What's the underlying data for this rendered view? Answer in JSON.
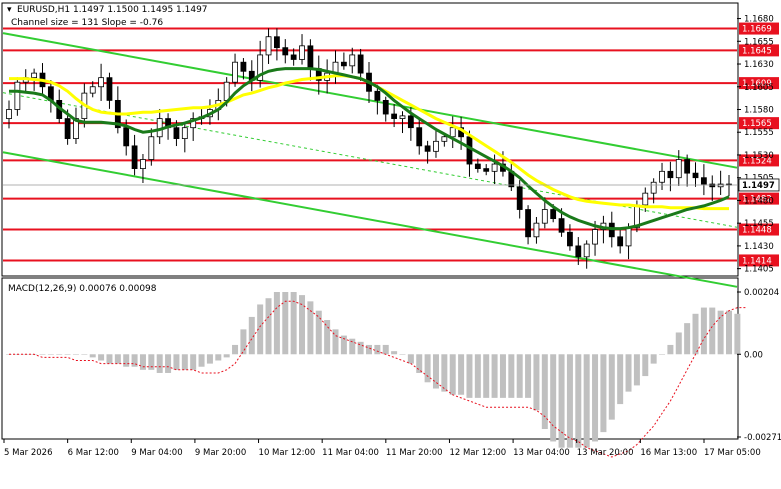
{
  "header": {
    "symbol_line": "EURUSD,H1  1.1497 1.1500 1.1495 1.1497",
    "channel_line": "Channel size = 131 Slope = -0.76"
  },
  "macd": {
    "label": "MACD(12,26,9) 0.00076 0.00098",
    "axis_ticks": [
      {
        "value": 0.00204,
        "label": "0.00204"
      },
      {
        "value": 0.0,
        "label": "0.00"
      },
      {
        "value": -0.00271,
        "label": "-0.00271"
      }
    ],
    "histogram": [
      0,
      0,
      0,
      0,
      0,
      0,
      0,
      0,
      0,
      0,
      -1,
      -2,
      -3,
      -3,
      -4,
      -4,
      -5,
      -5,
      -6,
      -6,
      -5,
      -5,
      -5,
      -4,
      -3,
      -2,
      -1,
      3,
      8,
      12,
      16,
      18,
      20,
      20,
      20,
      19,
      17,
      14,
      11,
      8,
      6,
      5,
      4,
      3,
      3,
      3,
      1,
      0,
      -3,
      -6,
      -9,
      -11,
      -12,
      -13,
      -13,
      -14,
      -14,
      -14,
      -14,
      -14,
      -14,
      -14,
      -14,
      -18,
      -24,
      -28,
      -30,
      -30,
      -30,
      -30,
      -28,
      -25,
      -21,
      -16,
      -12,
      -10,
      -7,
      -3,
      0,
      3,
      7,
      10,
      13,
      15,
      15,
      14,
      14,
      13
    ],
    "signal": [
      0,
      0,
      0,
      0,
      -1,
      -1,
      -1,
      -1,
      -2,
      -2,
      -2,
      -3,
      -3,
      -3,
      -3,
      -3,
      -4,
      -4,
      -4,
      -4,
      -5,
      -5,
      -5,
      -6,
      -6,
      -6,
      -5,
      -3,
      1,
      5,
      9,
      12,
      15,
      17,
      17,
      16,
      14,
      12,
      9,
      6,
      5,
      4,
      3,
      2,
      1,
      0,
      -1,
      -2,
      -3,
      -5,
      -7,
      -9,
      -11,
      -13,
      -14,
      -15,
      -16,
      -17,
      -17,
      -17,
      -17,
      -17,
      -17,
      -18,
      -20,
      -23,
      -25,
      -27,
      -28,
      -30,
      -31,
      -32,
      -33,
      -32,
      -31,
      -29,
      -26,
      -23,
      -19,
      -15,
      -10,
      -5,
      0,
      5,
      9,
      12,
      14,
      15,
      15
    ]
  },
  "x_axis": {
    "labels": [
      "5 Mar 2026",
      "6 Mar 12:00",
      "9 Mar 04:00",
      "9 Mar 20:00",
      "10 Mar 12:00",
      "11 Mar 04:00",
      "11 Mar 20:00",
      "12 Mar 12:00",
      "13 Mar 04:00",
      "13 Mar 20:00",
      "16 Mar 13:00",
      "17 Mar 05:00"
    ]
  },
  "chart_data": {
    "type": "candlestick",
    "symbol": "EURUSD",
    "timeframe": "H1",
    "last_price": "1.1497",
    "ylim": [
      1.1398,
      1.1696
    ],
    "y_ticks": [
      "1.1680",
      "1.1655",
      "1.1630",
      "1.1605",
      "1.1580",
      "1.1555",
      "1.1530",
      "1.1505",
      "1.1480",
      "1.1455",
      "1.1430",
      "1.1405"
    ],
    "levels": [
      {
        "value": 1.1669,
        "label": "1.1669",
        "color": "#e8111f"
      },
      {
        "value": 1.1645,
        "label": "1.1645",
        "color": "#e8111f"
      },
      {
        "value": 1.1609,
        "label": "1.1609",
        "color": "#e8111f"
      },
      {
        "value": 1.1565,
        "label": "1.1565",
        "color": "#e8111f"
      },
      {
        "value": 1.1524,
        "label": "1.1524",
        "color": "#e8111f"
      },
      {
        "value": 1.1482,
        "label": "1.1482",
        "color": "#e8111f"
      },
      {
        "value": 1.1448,
        "label": "1.1448",
        "color": "#e8111f"
      },
      {
        "value": 1.1414,
        "label": "1.1414",
        "color": "#e8111f"
      }
    ],
    "closes": [
      1.158,
      1.161,
      1.1615,
      1.162,
      1.1605,
      1.159,
      1.157,
      1.1548,
      1.157,
      1.1598,
      1.1605,
      1.1615,
      1.159,
      1.156,
      1.154,
      1.1515,
      1.1525,
      1.155,
      1.157,
      1.156,
      1.1548,
      1.156,
      1.157,
      1.1572,
      1.158,
      1.159,
      1.161,
      1.1632,
      1.1622,
      1.1612,
      1.164,
      1.166,
      1.1648,
      1.164,
      1.1635,
      1.165,
      1.1625,
      1.1612,
      1.162,
      1.1632,
      1.1628,
      1.164,
      1.162,
      1.16,
      1.159,
      1.1575,
      1.157,
      1.1573,
      1.156,
      1.154,
      1.1534,
      1.1545,
      1.155,
      1.156,
      1.155,
      1.152,
      1.1515,
      1.1512,
      1.152,
      1.1512,
      1.1495,
      1.147,
      1.144,
      1.1455,
      1.147,
      1.146,
      1.1445,
      1.143,
      1.1418,
      1.1432,
      1.1448,
      1.1455,
      1.144,
      1.143,
      1.145,
      1.1475,
      1.1488,
      1.15,
      1.1512,
      1.1505,
      1.1525,
      1.151,
      1.1505,
      1.1498,
      1.1495,
      1.1498,
      1.1497
    ],
    "ma_yellow": [
      1.1614,
      1.1614,
      1.1614,
      1.1613,
      1.1612,
      1.161,
      1.1606,
      1.16,
      1.1592,
      1.1585,
      1.158,
      1.1577,
      1.1576,
      1.1575,
      1.1575,
      1.1576,
      1.1577,
      1.1577,
      1.1578,
      1.1579,
      1.158,
      1.1581,
      1.1582,
      1.1582,
      1.1583,
      1.1585,
      1.1588,
      1.1592,
      1.1596,
      1.1598,
      1.1601,
      1.1604,
      1.1606,
      1.1609,
      1.1611,
      1.1613,
      1.1614,
      1.1615,
      1.1616,
      1.1617,
      1.1617,
      1.1616,
      1.1614,
      1.161,
      1.1605,
      1.16,
      1.1595,
      1.159,
      1.1585,
      1.158,
      1.1575,
      1.157,
      1.1566,
      1.1562,
      1.1558,
      1.1552,
      1.1546,
      1.154,
      1.1534,
      1.1528,
      1.1522,
      1.1515,
      1.1508,
      1.1502,
      1.1497,
      1.1492,
      1.1488,
      1.1484,
      1.1481,
      1.1479,
      1.1478,
      1.1477,
      1.1476,
      1.1475,
      1.1475,
      1.1474,
      1.1473,
      1.1473,
      1.1473,
      1.1472,
      1.1472,
      1.1472,
      1.1472,
      1.1471,
      1.1471,
      1.1471,
      1.1471
    ],
    "ma_green": [
      1.16,
      1.16,
      1.1599,
      1.1598,
      1.1596,
      1.159,
      1.1582,
      1.1575,
      1.1568,
      1.1566,
      1.1566,
      1.1566,
      1.1565,
      1.1564,
      1.1562,
      1.1558,
      1.1555,
      1.1556,
      1.1558,
      1.1561,
      1.1563,
      1.1565,
      1.1568,
      1.1571,
      1.1575,
      1.158,
      1.1588,
      1.1598,
      1.1606,
      1.1612,
      1.1618,
      1.1622,
      1.1624,
      1.1625,
      1.1625,
      1.1625,
      1.1625,
      1.1624,
      1.1622,
      1.162,
      1.1618,
      1.1616,
      1.1614,
      1.161,
      1.1605,
      1.1598,
      1.159,
      1.1583,
      1.1576,
      1.157,
      1.1564,
      1.1558,
      1.1553,
      1.1548,
      1.1543,
      1.1538,
      1.1533,
      1.1528,
      1.1523,
      1.1518,
      1.1512,
      1.1505,
      1.1496,
      1.1488,
      1.148,
      1.1473,
      1.1467,
      1.1462,
      1.1458,
      1.1455,
      1.1452,
      1.145,
      1.1449,
      1.1449,
      1.145,
      1.1452,
      1.1455,
      1.1458,
      1.1461,
      1.1464,
      1.1467,
      1.147,
      1.1472,
      1.1474,
      1.1477,
      1.148,
      1.1484
    ],
    "channel_upper": {
      "start": 1.1664,
      "end": 1.1516,
      "color": "#32cd32"
    },
    "channel_lower": {
      "start": 1.1533,
      "end": 1.1385,
      "color": "#32cd32"
    },
    "grid": false,
    "legend": "none"
  }
}
